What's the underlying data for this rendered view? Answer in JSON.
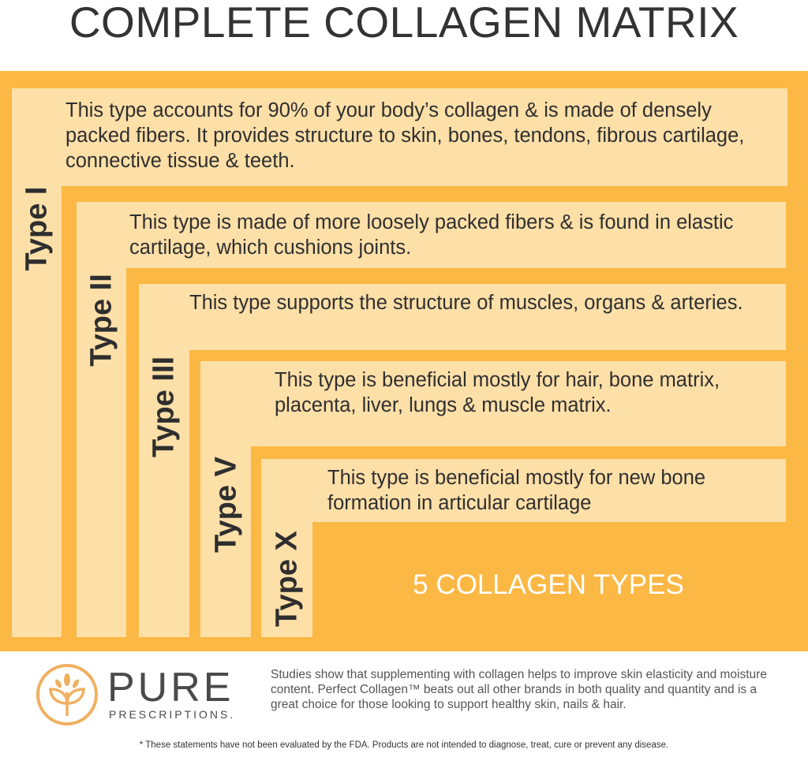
{
  "title": "COMPLETE COLLAGEN MATRIX",
  "types": [
    {
      "label": "Type I",
      "description": "This type accounts for 90% of your body’s collagen & is made of densely packed fibers. It provides structure to skin, bones, tendons, fibrous cartilage, connective tissue & teeth."
    },
    {
      "label": "Type II",
      "description": "This type is made of more loosely packed fibers & is found in elastic cartilage, which cushions joints."
    },
    {
      "label": "Type III",
      "description": "This type supports the structure of muscles, organs & arteries."
    },
    {
      "label": "Type V",
      "description": "This type is beneficial mostly for hair, bone matrix, placenta, liver, lungs & muscle matrix."
    },
    {
      "label": "Type X",
      "description": "This type is beneficial mostly for new bone formation in articular cartilage"
    }
  ],
  "summary": "5 COLLAGEN TYPES",
  "brand": {
    "name": "PURE",
    "sub": "PRESCRIPTIONS.",
    "icon": "leaf-sprout-circle-icon"
  },
  "blurb": "Studies show that supplementing with collagen helps to improve skin elasticity and moisture content. Perfect Collagen™ beats out all other brands in both quality and quantity and is a great choice for those looking to support healthy skin, nails & hair.",
  "disclaimer": "* These statements have not been evaluated by the FDA. Products are not intended to diagnose, treat, cure or prevent any disease.",
  "colors": {
    "orange": "#fbb844",
    "panel": "#fddfa8",
    "text": "#333333",
    "logo": "#f0b060"
  }
}
